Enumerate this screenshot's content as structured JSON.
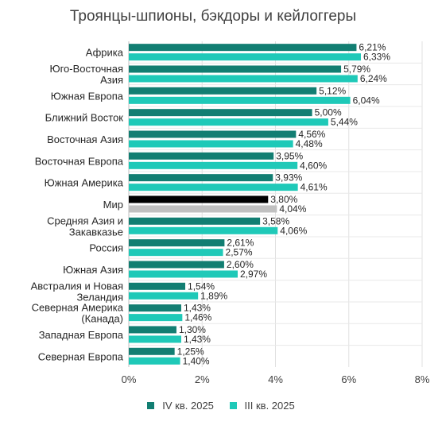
{
  "chart_data": {
    "type": "bar",
    "orientation": "horizontal",
    "title": "Троянцы-шпионы, бэкдоры и кейлоггеры",
    "categories": [
      "Африка",
      "Юго-Восточная Азия",
      "Южная Европа",
      "Ближний Восток",
      "Восточная Азия",
      "Восточная Европа",
      "Южная Америка",
      "Мир",
      "Средняя Азия и Закавказье",
      "Россия",
      "Южная Азия",
      "Австралия и Новая Зеландия",
      "Северная Америка (Канада)",
      "Западная Европа",
      "Северная Европа"
    ],
    "category_lines": [
      [
        "Африка"
      ],
      [
        "Юго-Восточная",
        "Азия"
      ],
      [
        "Южная Европа"
      ],
      [
        "Ближний Восток"
      ],
      [
        "Восточная Азия"
      ],
      [
        "Восточная Европа"
      ],
      [
        "Южная Америка"
      ],
      [
        "Мир"
      ],
      [
        "Средняя Азия и",
        "Закавказье"
      ],
      [
        "Россия"
      ],
      [
        "Южная Азия"
      ],
      [
        "Австралия и Новая",
        "Зеландия"
      ],
      [
        "Северная Америка",
        "(Канада)"
      ],
      [
        "Западная Европа"
      ],
      [
        "Северная Европа"
      ]
    ],
    "series": [
      {
        "name": "IV кв. 2025",
        "color": "#127e72",
        "values": [
          6.21,
          5.79,
          5.12,
          5.0,
          4.56,
          3.95,
          3.93,
          3.8,
          3.58,
          2.61,
          2.6,
          1.54,
          1.43,
          1.3,
          1.25
        ],
        "labels": [
          "6,21%",
          "5,79%",
          "5,12%",
          "5,00%",
          "4,56%",
          "3,95%",
          "3,93%",
          "3,80%",
          "3,58%",
          "2,61%",
          "2,60%",
          "1,54%",
          "1,43%",
          "1,30%",
          "1,25%"
        ]
      },
      {
        "name": "III кв. 2025",
        "color": "#1fc9b8",
        "values": [
          6.33,
          6.24,
          6.04,
          5.44,
          4.48,
          4.6,
          4.61,
          4.04,
          4.06,
          2.57,
          2.97,
          1.89,
          1.46,
          1.43,
          1.4
        ],
        "labels": [
          "6,33%",
          "6,24%",
          "6,04%",
          "5,44%",
          "4,48%",
          "4,60%",
          "4,61%",
          "4,04%",
          "4,06%",
          "2,57%",
          "2,97%",
          "1,89%",
          "1,46%",
          "1,43%",
          "1,40%"
        ]
      }
    ],
    "highlight": {
      "category": "Мир",
      "colors": [
        "#000000",
        "#c0c0c0"
      ]
    },
    "xlim": [
      0,
      8
    ],
    "xticks": [
      0,
      2,
      4,
      6,
      8
    ],
    "xtick_labels": [
      "0%",
      "2%",
      "4%",
      "6%",
      "8%"
    ],
    "grid": true,
    "legend_position": "bottom"
  }
}
